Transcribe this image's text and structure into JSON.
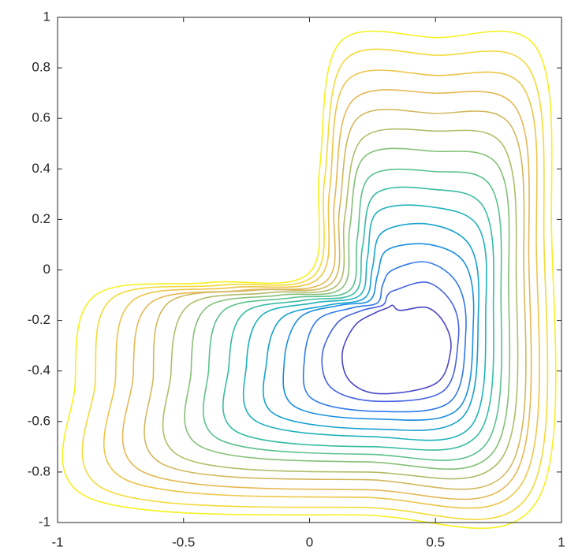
{
  "chart_data": {
    "type": "contour",
    "xlim": [
      -1,
      1
    ],
    "ylim": [
      -1,
      1
    ],
    "xticks": [
      -1,
      -0.5,
      0,
      0.5,
      1
    ],
    "yticks": [
      -1,
      -0.8,
      -0.6,
      -0.4,
      -0.2,
      0,
      0.2,
      0.4,
      0.6,
      0.8,
      1
    ],
    "box": true,
    "series": [
      {
        "color": "#f5f122",
        "x": [
          0.12,
          0.5,
          0.9,
          0.96,
          0.9,
          0.2,
          -0.88,
          -0.93,
          -0.85,
          -0.4,
          0.0,
          0.04
        ],
        "y": [
          0.9,
          0.92,
          0.88,
          0.2,
          -0.92,
          -0.97,
          -0.9,
          -0.45,
          -0.1,
          -0.05,
          -0.01,
          0.4
        ]
      },
      {
        "color": "#f2da3a",
        "x": [
          0.14,
          0.5,
          0.87,
          0.93,
          0.87,
          0.21,
          -0.81,
          -0.85,
          -0.78,
          -0.35,
          0.02,
          0.06
        ],
        "y": [
          0.83,
          0.85,
          0.8,
          0.16,
          -0.89,
          -0.94,
          -0.87,
          -0.44,
          -0.11,
          -0.06,
          -0.02,
          0.36
        ]
      },
      {
        "color": "#edc54a",
        "x": [
          0.15,
          0.5,
          0.85,
          0.9,
          0.84,
          0.21,
          -0.73,
          -0.77,
          -0.7,
          -0.31,
          0.04,
          0.08
        ],
        "y": [
          0.75,
          0.77,
          0.72,
          0.13,
          -0.85,
          -0.9,
          -0.83,
          -0.43,
          -0.12,
          -0.07,
          -0.03,
          0.32
        ]
      },
      {
        "color": "#e5b855",
        "x": [
          0.17,
          0.49,
          0.82,
          0.87,
          0.81,
          0.22,
          -0.66,
          -0.7,
          -0.63,
          -0.26,
          0.07,
          0.1
        ],
        "y": [
          0.67,
          0.7,
          0.64,
          0.09,
          -0.82,
          -0.87,
          -0.8,
          -0.42,
          -0.13,
          -0.08,
          -0.04,
          0.28
        ]
      },
      {
        "color": "#d3b85e",
        "x": [
          0.19,
          0.49,
          0.8,
          0.85,
          0.79,
          0.22,
          -0.58,
          -0.62,
          -0.56,
          -0.21,
          0.09,
          0.12
        ],
        "y": [
          0.6,
          0.62,
          0.57,
          0.05,
          -0.79,
          -0.83,
          -0.77,
          -0.42,
          -0.13,
          -0.08,
          -0.05,
          0.25
        ]
      },
      {
        "color": "#b2bc68",
        "x": [
          0.21,
          0.49,
          0.77,
          0.82,
          0.76,
          0.23,
          -0.51,
          -0.55,
          -0.48,
          -0.16,
          0.11,
          0.14
        ],
        "y": [
          0.52,
          0.55,
          0.49,
          0.01,
          -0.75,
          -0.8,
          -0.74,
          -0.41,
          -0.14,
          -0.09,
          -0.06,
          0.21
        ]
      },
      {
        "color": "#86c078",
        "x": [
          0.22,
          0.49,
          0.75,
          0.79,
          0.73,
          0.23,
          -0.43,
          -0.47,
          -0.41,
          -0.12,
          0.13,
          0.16
        ],
        "y": [
          0.45,
          0.47,
          0.41,
          -0.02,
          -0.72,
          -0.76,
          -0.7,
          -0.4,
          -0.15,
          -0.1,
          -0.07,
          0.17
        ]
      },
      {
        "color": "#5cc18d",
        "x": [
          0.24,
          0.49,
          0.72,
          0.76,
          0.7,
          0.24,
          -0.36,
          -0.4,
          -0.34,
          -0.07,
          0.16,
          0.19
        ],
        "y": [
          0.37,
          0.39,
          0.33,
          -0.06,
          -0.69,
          -0.73,
          -0.67,
          -0.39,
          -0.16,
          -0.11,
          -0.08,
          0.13
        ]
      },
      {
        "color": "#38bca3",
        "x": [
          0.26,
          0.48,
          0.69,
          0.73,
          0.67,
          0.25,
          -0.29,
          -0.32,
          -0.26,
          -0.02,
          0.18,
          0.21
        ],
        "y": [
          0.3,
          0.32,
          0.25,
          -0.1,
          -0.65,
          -0.7,
          -0.64,
          -0.38,
          -0.17,
          -0.12,
          -0.09,
          0.09
        ]
      },
      {
        "color": "#21b2bb",
        "x": [
          0.27,
          0.48,
          0.67,
          0.7,
          0.64,
          0.25,
          -0.21,
          -0.25,
          -0.19,
          0.02,
          0.2,
          0.23
        ],
        "y": [
          0.23,
          0.25,
          0.17,
          -0.13,
          -0.62,
          -0.66,
          -0.6,
          -0.37,
          -0.18,
          -0.13,
          -0.1,
          0.05
        ]
      },
      {
        "color": "#16a1cf",
        "x": [
          0.29,
          0.48,
          0.64,
          0.67,
          0.61,
          0.26,
          -0.14,
          -0.17,
          -0.11,
          0.07,
          0.22,
          0.25
        ],
        "y": [
          0.15,
          0.18,
          0.09,
          -0.17,
          -0.58,
          -0.63,
          -0.57,
          -0.36,
          -0.19,
          -0.14,
          -0.11,
          0.01
        ]
      },
      {
        "color": "#1a8ee0",
        "x": [
          0.31,
          0.48,
          0.62,
          0.65,
          0.59,
          0.26,
          -0.06,
          -0.1,
          -0.04,
          0.12,
          0.24,
          0.27
        ],
        "y": [
          0.08,
          0.1,
          0.02,
          -0.21,
          -0.55,
          -0.59,
          -0.54,
          -0.36,
          -0.19,
          -0.14,
          -0.12,
          -0.02
        ]
      },
      {
        "color": "#3079ea",
        "x": [
          0.33,
          0.47,
          0.59,
          0.62,
          0.56,
          0.27,
          0.01,
          -0.02,
          0.03,
          0.17,
          0.27,
          0.29
        ],
        "y": [
          0.0,
          0.03,
          -0.06,
          -0.25,
          -0.52,
          -0.56,
          -0.51,
          -0.35,
          -0.2,
          -0.15,
          -0.13,
          -0.06
        ]
      },
      {
        "color": "#4562e4",
        "x": [
          0.34,
          0.47,
          0.57,
          0.59,
          0.53,
          0.27,
          0.09,
          0.05,
          0.11,
          0.21,
          0.29,
          0.31
        ],
        "y": [
          -0.08,
          -0.05,
          -0.14,
          -0.28,
          -0.48,
          -0.52,
          -0.47,
          -0.34,
          -0.21,
          -0.16,
          -0.14,
          -0.1
        ]
      },
      {
        "color": "#4a48c8",
        "x": [
          0.36,
          0.47,
          0.54,
          0.56,
          0.5,
          0.28,
          0.16,
          0.13,
          0.18,
          0.26,
          0.31,
          0.33
        ],
        "y": [
          -0.16,
          -0.15,
          -0.22,
          -0.32,
          -0.45,
          -0.49,
          -0.44,
          -0.33,
          -0.22,
          -0.17,
          -0.15,
          -0.14
        ]
      }
    ]
  }
}
